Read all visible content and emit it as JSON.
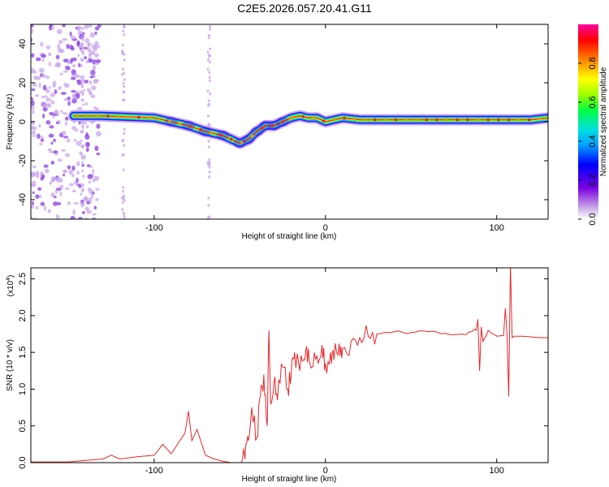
{
  "title": "C2E5.2026.057.20.41.G11",
  "chart_data": [
    {
      "type": "heatmap",
      "name": "spectrogram",
      "xlabel": "Height of straight line (km)",
      "ylabel": "Frequency (Hz)",
      "xlim": [
        -172,
        130
      ],
      "ylim": [
        -50,
        50
      ],
      "xticks": [
        -100,
        0,
        100
      ],
      "xtick_labels": [
        "-100",
        "0",
        "100"
      ],
      "yticks": [
        -40,
        -20,
        0,
        20,
        40
      ],
      "ytick_labels": [
        "-40",
        "-20",
        "0",
        "20",
        "40"
      ],
      "colorbar": {
        "label": "Normalized spectral amplitude",
        "range": [
          0,
          1
        ],
        "ticks": [
          0.0,
          0.2,
          0.4,
          0.6,
          0.8
        ],
        "tick_labels": [
          "0.0",
          "0.2",
          "0.4",
          "0.6",
          "0.8"
        ]
      },
      "ridge": {
        "x": [
          -147,
          -130,
          -115,
          -100,
          -90,
          -80,
          -70,
          -60,
          -50,
          -45,
          -40,
          -35,
          -30,
          -25,
          -20,
          -15,
          -10,
          -5,
          0,
          10,
          20,
          40,
          60,
          80,
          100,
          110,
          120,
          130
        ],
        "y": [
          3,
          3,
          2.5,
          2,
          0,
          -2,
          -5,
          -7,
          -11,
          -9,
          -5,
          -2,
          -2,
          0,
          2,
          3,
          2,
          2,
          0,
          2,
          1,
          1,
          1,
          1,
          1,
          1,
          1,
          2
        ]
      }
    },
    {
      "type": "line",
      "name": "snr",
      "xlabel": "Height of straight line (km)",
      "ylabel": "SNR (10 * v/v)",
      "y_multiplier": "(x10",
      "y_exponent": "4",
      "y_multiplier_close": ")",
      "xlim": [
        -172,
        130
      ],
      "ylim": [
        0,
        2.65
      ],
      "xticks": [
        -100,
        0,
        100
      ],
      "xtick_labels": [
        "-100",
        "0",
        "100"
      ],
      "yticks": [
        0,
        0.5,
        1.0,
        1.5,
        2.0,
        2.5
      ],
      "ytick_labels": [
        "0.0",
        "0.5",
        "1.0",
        "1.5",
        "2.0",
        "2.5"
      ],
      "color": "#e8262a",
      "series": [
        {
          "name": "SNR",
          "x": [
            -172,
            -150,
            -140,
            -130,
            -125,
            -120,
            -110,
            -100,
            -95,
            -90,
            -85,
            -82,
            -80,
            -78,
            -75,
            -70,
            -65,
            -60,
            -55,
            -50,
            -47,
            -45,
            -43,
            -40,
            -38,
            -36,
            -34,
            -33,
            -32,
            -30,
            -28,
            -25,
            -22,
            -20,
            -18,
            -15,
            -12,
            -10,
            -8,
            -5,
            -2,
            0,
            3,
            5,
            8,
            10,
            15,
            20,
            25,
            30,
            40,
            50,
            60,
            70,
            80,
            85,
            88,
            89,
            90,
            91,
            92,
            95,
            100,
            104,
            105,
            106,
            107,
            108,
            109,
            110,
            115,
            120,
            125,
            130
          ],
          "y": [
            0.01,
            0.01,
            0.03,
            0.05,
            0.1,
            0.05,
            0.08,
            0.1,
            0.25,
            0.12,
            0.3,
            0.4,
            0.7,
            0.3,
            0.45,
            0.1,
            0.05,
            0.02,
            0.0,
            0.0,
            0.05,
            0.3,
            0.75,
            0.35,
            0.9,
            1.2,
            0.5,
            1.8,
            0.8,
            1.1,
            0.85,
            1.3,
            1.0,
            1.2,
            1.5,
            1.25,
            1.4,
            1.55,
            1.3,
            1.45,
            1.6,
            1.35,
            1.5,
            1.4,
            1.62,
            1.55,
            1.65,
            1.7,
            1.72,
            1.75,
            1.78,
            1.77,
            1.78,
            1.76,
            1.75,
            1.78,
            1.8,
            1.95,
            1.25,
            1.85,
            1.65,
            1.8,
            1.72,
            1.73,
            2.1,
            1.75,
            0.9,
            2.7,
            1.7,
            1.72,
            1.72,
            1.71,
            1.7,
            1.7
          ]
        }
      ]
    }
  ]
}
